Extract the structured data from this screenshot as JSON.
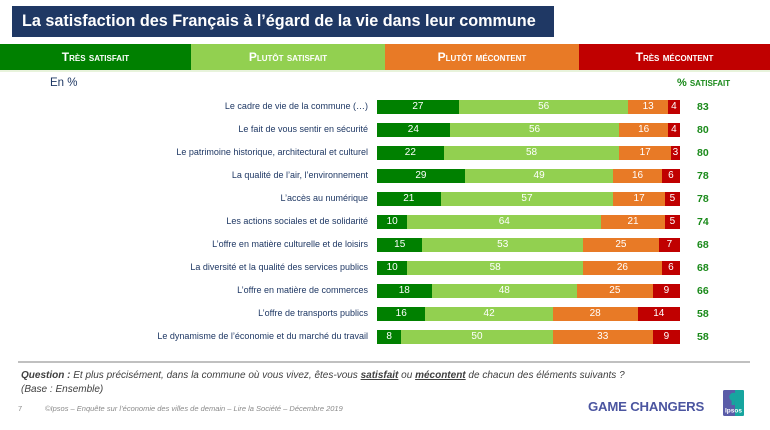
{
  "colors": {
    "title_bg": "#1f3864",
    "label_text": "#1f3864",
    "total_text": "#1a8a1a",
    "tagline": "#4b55a0",
    "logo_left": "#5a5ca8",
    "logo_right": "#17a59f"
  },
  "chart_data": {
    "type": "bar",
    "orientation": "horizontal",
    "stacked": true,
    "title": "La satisfaction des Français à l’égard de la vie dans leur commune",
    "unit_note": "En %",
    "xlabel": "",
    "ylabel": "",
    "xlim": [
      0,
      100
    ],
    "grid": false,
    "legend_position": "top",
    "categories": [
      "Le cadre de vie de la commune (…)",
      "Le fait de vous sentir en sécurité",
      "Le patrimoine historique, architectural et culturel",
      "La qualité de l’air, l’environnement",
      "L’accès au numérique",
      "Les actions sociales et de solidarité",
      "L’offre en matière culturelle et de loisirs",
      "La diversité et la qualité des services publics",
      "L’offre en matière de commerces",
      "L’offre de transports publics",
      "Le dynamisme de l’économie et du marché du travail"
    ],
    "series": [
      {
        "name": "Très satisfait",
        "color": "#008000",
        "values": [
          27,
          24,
          22,
          29,
          21,
          10,
          15,
          10,
          18,
          16,
          8
        ]
      },
      {
        "name": "Plutôt satisfait",
        "color": "#92d050",
        "values": [
          56,
          56,
          58,
          49,
          57,
          64,
          53,
          58,
          48,
          42,
          50
        ]
      },
      {
        "name": "Plutôt mécontent",
        "color": "#e87a26",
        "values": [
          13,
          16,
          17,
          16,
          17,
          21,
          25,
          26,
          25,
          28,
          33
        ]
      },
      {
        "name": "Très mécontent",
        "color": "#c00000",
        "values": [
          4,
          4,
          3,
          6,
          5,
          5,
          7,
          6,
          9,
          14,
          9
        ]
      }
    ],
    "totals_label": "% satisfait",
    "totals": [
      83,
      80,
      80,
      78,
      78,
      74,
      68,
      68,
      66,
      58,
      58
    ]
  },
  "footer": {
    "question_label": "Question :",
    "question_before": " Et plus précisément, dans la commune où vous vivez, êtes-vous ",
    "question_word1": "satisfait",
    "question_mid": " ou ",
    "question_word2": "mécontent",
    "question_after": " de chacun des éléments suivants ?",
    "base": "(Base : Ensemble)",
    "page_number": "7",
    "source": "©Ipsos – Enquête sur l’économie des villes de demain – Lire la Société – Décembre 2019",
    "tagline": "GAME CHANGERS",
    "logo_text": "Ipsos",
    "logo_icon": "ipsos-logo-icon"
  }
}
